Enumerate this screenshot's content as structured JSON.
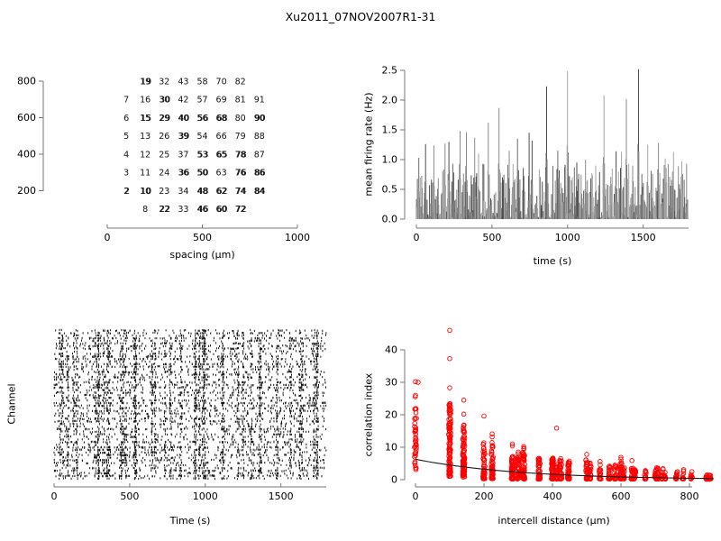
{
  "title": "Xu2011_07NOV2007R1-31",
  "colors": {
    "background": "#ffffff",
    "axis": "#777777",
    "text": "#000000",
    "point_red": "#ff0000",
    "fit_line": "#1a1a1a",
    "raster_mark": "#000000",
    "trace_grays": [
      "#4d4d4d",
      "#6a6a6a",
      "#8a8a8a",
      "#a6a6a6"
    ]
  },
  "chart_data": [
    {
      "id": "electrode-map",
      "type": "scatter",
      "xlabel": "spacing (µm)",
      "ylabel": "",
      "xlim": [
        0,
        1000
      ],
      "ylim": [
        0,
        900
      ],
      "xticks": [
        "0",
        "500",
        "1000"
      ],
      "yticks": [
        "200",
        "400",
        "600",
        "800"
      ],
      "note": "channel numbers plotted at electrode grid positions; overlapped (double-printed) labels flagged o=1",
      "rows": [
        {
          "y": 800,
          "cells": [
            {
              "x": 200,
              "l": "19",
              "o": 1
            },
            {
              "x": 300,
              "l": "32"
            },
            {
              "x": 400,
              "l": "43"
            },
            {
              "x": 500,
              "l": "58"
            },
            {
              "x": 600,
              "l": "70"
            },
            {
              "x": 700,
              "l": "82"
            }
          ]
        },
        {
          "y": 700,
          "cells": [
            {
              "x": 100,
              "l": "7"
            },
            {
              "x": 200,
              "l": "16"
            },
            {
              "x": 300,
              "l": "30",
              "o": 1
            },
            {
              "x": 400,
              "l": "42"
            },
            {
              "x": 500,
              "l": "57"
            },
            {
              "x": 600,
              "l": "69"
            },
            {
              "x": 700,
              "l": "81"
            },
            {
              "x": 800,
              "l": "91"
            }
          ]
        },
        {
          "y": 600,
          "cells": [
            {
              "x": 100,
              "l": "6"
            },
            {
              "x": 200,
              "l": "15",
              "o": 1
            },
            {
              "x": 300,
              "l": "29",
              "o": 1
            },
            {
              "x": 400,
              "l": "40",
              "o": 1
            },
            {
              "x": 500,
              "l": "56",
              "o": 1
            },
            {
              "x": 600,
              "l": "68",
              "o": 1
            },
            {
              "x": 700,
              "l": "80"
            },
            {
              "x": 800,
              "l": "90",
              "o": 1
            }
          ]
        },
        {
          "y": 500,
          "cells": [
            {
              "x": 100,
              "l": "5"
            },
            {
              "x": 200,
              "l": "13"
            },
            {
              "x": 300,
              "l": "26"
            },
            {
              "x": 400,
              "l": "39",
              "o": 1
            },
            {
              "x": 500,
              "l": "54"
            },
            {
              "x": 600,
              "l": "66"
            },
            {
              "x": 700,
              "l": "79"
            },
            {
              "x": 800,
              "l": "88"
            }
          ]
        },
        {
          "y": 400,
          "cells": [
            {
              "x": 100,
              "l": "4"
            },
            {
              "x": 200,
              "l": "12"
            },
            {
              "x": 300,
              "l": "25"
            },
            {
              "x": 400,
              "l": "37"
            },
            {
              "x": 500,
              "l": "53",
              "o": 1
            },
            {
              "x": 600,
              "l": "65",
              "o": 1
            },
            {
              "x": 700,
              "l": "78",
              "o": 1
            },
            {
              "x": 800,
              "l": "87"
            }
          ]
        },
        {
          "y": 300,
          "cells": [
            {
              "x": 100,
              "l": "3"
            },
            {
              "x": 200,
              "l": "11"
            },
            {
              "x": 300,
              "l": "24"
            },
            {
              "x": 400,
              "l": "36",
              "o": 1
            },
            {
              "x": 500,
              "l": "50",
              "o": 1
            },
            {
              "x": 600,
              "l": "63"
            },
            {
              "x": 700,
              "l": "76",
              "o": 1
            },
            {
              "x": 800,
              "l": "86",
              "o": 1
            }
          ]
        },
        {
          "y": 200,
          "cells": [
            {
              "x": 100,
              "l": "2",
              "o": 1
            },
            {
              "x": 200,
              "l": "10",
              "o": 1
            },
            {
              "x": 300,
              "l": "23"
            },
            {
              "x": 400,
              "l": "34"
            },
            {
              "x": 500,
              "l": "48",
              "o": 1
            },
            {
              "x": 600,
              "l": "62",
              "o": 1
            },
            {
              "x": 700,
              "l": "74",
              "o": 1
            },
            {
              "x": 800,
              "l": "84",
              "o": 1
            }
          ]
        },
        {
          "y": 100,
          "cells": [
            {
              "x": 200,
              "l": "8"
            },
            {
              "x": 300,
              "l": "22",
              "o": 1
            },
            {
              "x": 400,
              "l": "33"
            },
            {
              "x": 500,
              "l": "46",
              "o": 1
            },
            {
              "x": 600,
              "l": "60",
              "o": 1
            },
            {
              "x": 700,
              "l": "72",
              "o": 1
            }
          ]
        }
      ]
    },
    {
      "id": "firing-rate",
      "type": "line",
      "xlabel": "time (s)",
      "ylabel": "mean firing rate (Hz)",
      "xlim": [
        0,
        1800
      ],
      "ylim": [
        0.0,
        2.5
      ],
      "xticks": [
        "0",
        "500",
        "1000",
        "1500"
      ],
      "yticks": [
        "0.0",
        "0.5",
        "1.0",
        "1.5",
        "2.0",
        "2.5"
      ],
      "baseline": {
        "typical_min": 0.02,
        "typical_max": 1.0
      },
      "n_samples": 560,
      "seed": 42,
      "peaks": [
        {
          "t": 15,
          "v": 1.03
        },
        {
          "t": 60,
          "v": 1.26
        },
        {
          "t": 115,
          "v": 1.24
        },
        {
          "t": 190,
          "v": 1.27
        },
        {
          "t": 215,
          "v": 1.3
        },
        {
          "t": 290,
          "v": 1.48
        },
        {
          "t": 330,
          "v": 1.46
        },
        {
          "t": 385,
          "v": 1.37
        },
        {
          "t": 410,
          "v": 1.1
        },
        {
          "t": 475,
          "v": 1.62
        },
        {
          "t": 545,
          "v": 1.87
        },
        {
          "t": 615,
          "v": 1.15
        },
        {
          "t": 670,
          "v": 1.35
        },
        {
          "t": 745,
          "v": 1.45
        },
        {
          "t": 765,
          "v": 1.32
        },
        {
          "t": 860,
          "v": 2.23
        },
        {
          "t": 935,
          "v": 1.15
        },
        {
          "t": 1000,
          "v": 2.49
        },
        {
          "t": 1060,
          "v": 0.95
        },
        {
          "t": 1120,
          "v": 1.0
        },
        {
          "t": 1185,
          "v": 0.9
        },
        {
          "t": 1240,
          "v": 2.08
        },
        {
          "t": 1320,
          "v": 1.14
        },
        {
          "t": 1355,
          "v": 1.13
        },
        {
          "t": 1390,
          "v": 2.02
        },
        {
          "t": 1470,
          "v": 2.52
        },
        {
          "t": 1530,
          "v": 1.25
        },
        {
          "t": 1600,
          "v": 1.28
        },
        {
          "t": 1645,
          "v": 1.02
        },
        {
          "t": 1700,
          "v": 1.13
        },
        {
          "t": 1755,
          "v": 0.97
        }
      ]
    },
    {
      "id": "raster",
      "type": "raster",
      "xlabel": "Time (s)",
      "ylabel": "Channel",
      "xlim": [
        0,
        1800
      ],
      "xticks": [
        "0",
        "500",
        "1000",
        "1500"
      ],
      "n_channels": 58,
      "seed": 7,
      "mean_spikes_per_channel": 95,
      "n_bursts": 42
    },
    {
      "id": "correlation",
      "type": "scatter",
      "xlabel": "intercell distance (µm)",
      "ylabel": "correlation index",
      "xlim": [
        0,
        880
      ],
      "ylim": [
        0,
        46
      ],
      "xticks": [
        "0",
        "200",
        "400",
        "600",
        "800"
      ],
      "yticks": [
        "0",
        "10",
        "20",
        "30",
        "40"
      ],
      "seed": 11,
      "fit": {
        "type": "exponential",
        "a": 6.3,
        "tau": 300
      },
      "clusters": [
        {
          "x": 0,
          "n": 42,
          "ymin": 2.5,
          "ymax": 26.0
        },
        {
          "x": 100,
          "n": 115,
          "ymin": 1.0,
          "ymax": 23.5
        },
        {
          "x": 141,
          "n": 85,
          "ymin": 0.8,
          "ymax": 17.5
        },
        {
          "x": 200,
          "n": 55,
          "ymin": 0.3,
          "ymax": 12.0
        },
        {
          "x": 224,
          "n": 55,
          "ymin": 0.3,
          "ymax": 11.5
        },
        {
          "x": 283,
          "n": 65,
          "ymin": 0.2,
          "ymax": 7.2
        },
        {
          "x": 300,
          "n": 45,
          "ymin": 0.2,
          "ymax": 7.0
        },
        {
          "x": 316,
          "n": 55,
          "ymin": 0.2,
          "ymax": 9.5
        },
        {
          "x": 361,
          "n": 45,
          "ymin": 0.2,
          "ymax": 6.6
        },
        {
          "x": 400,
          "n": 55,
          "ymin": 0.2,
          "ymax": 6.8
        },
        {
          "x": 412,
          "n": 28,
          "ymin": 0.2,
          "ymax": 5.0
        },
        {
          "x": 424,
          "n": 28,
          "ymin": 0.2,
          "ymax": 6.5
        },
        {
          "x": 447,
          "n": 38,
          "ymin": 0.2,
          "ymax": 5.8
        },
        {
          "x": 500,
          "n": 35,
          "ymin": 0.2,
          "ymax": 6.2
        },
        {
          "x": 510,
          "n": 24,
          "ymin": 0.2,
          "ymax": 5.2
        },
        {
          "x": 539,
          "n": 20,
          "ymin": 0.2,
          "ymax": 5.6
        },
        {
          "x": 566,
          "n": 24,
          "ymin": 0.2,
          "ymax": 4.2
        },
        {
          "x": 583,
          "n": 24,
          "ymin": 0.2,
          "ymax": 4.8
        },
        {
          "x": 600,
          "n": 28,
          "ymin": 0.2,
          "ymax": 5.5
        },
        {
          "x": 608,
          "n": 20,
          "ymin": 0.2,
          "ymax": 4.0
        },
        {
          "x": 632,
          "n": 20,
          "ymin": 0.2,
          "ymax": 3.6
        },
        {
          "x": 640,
          "n": 18,
          "ymin": 0.2,
          "ymax": 3.8
        },
        {
          "x": 671,
          "n": 14,
          "ymin": 0.2,
          "ymax": 3.2
        },
        {
          "x": 700,
          "n": 18,
          "ymin": 0.2,
          "ymax": 3.6
        },
        {
          "x": 707,
          "n": 14,
          "ymin": 0.2,
          "ymax": 4.2
        },
        {
          "x": 721,
          "n": 14,
          "ymin": 0.2,
          "ymax": 3.4
        },
        {
          "x": 728,
          "n": 12,
          "ymin": 0.2,
          "ymax": 3.0
        },
        {
          "x": 762,
          "n": 12,
          "ymin": 0.2,
          "ymax": 2.8
        },
        {
          "x": 781,
          "n": 10,
          "ymin": 0.2,
          "ymax": 3.4
        },
        {
          "x": 806,
          "n": 10,
          "ymin": 0.2,
          "ymax": 2.8
        },
        {
          "x": 849,
          "n": 8,
          "ymin": 0.1,
          "ymax": 1.6
        },
        {
          "x": 860,
          "n": 12,
          "ymin": 0.1,
          "ymax": 1.4
        }
      ],
      "outliers": [
        {
          "x": 0,
          "y": 30.2
        },
        {
          "x": 8,
          "y": 30.0
        },
        {
          "x": 0,
          "y": 26.0
        },
        {
          "x": 100,
          "y": 46.0
        },
        {
          "x": 100,
          "y": 37.3
        },
        {
          "x": 100,
          "y": 28.3
        },
        {
          "x": 141,
          "y": 24.5
        },
        {
          "x": 141,
          "y": 20.2
        },
        {
          "x": 200,
          "y": 19.6
        },
        {
          "x": 224,
          "y": 14.1
        },
        {
          "x": 224,
          "y": 13.2
        },
        {
          "x": 283,
          "y": 11.0
        },
        {
          "x": 283,
          "y": 10.4
        },
        {
          "x": 316,
          "y": 10.2
        },
        {
          "x": 316,
          "y": 9.7
        },
        {
          "x": 300,
          "y": 8.5
        },
        {
          "x": 300,
          "y": 8.0
        },
        {
          "x": 412,
          "y": 15.9
        },
        {
          "x": 500,
          "y": 7.8
        },
        {
          "x": 600,
          "y": 6.9
        },
        {
          "x": 600,
          "y": 6.3
        },
        {
          "x": 632,
          "y": 5.9
        },
        {
          "x": 539,
          "y": 5.6
        },
        {
          "x": 424,
          "y": 6.5
        },
        {
          "x": 361,
          "y": 6.6
        }
      ]
    }
  ]
}
